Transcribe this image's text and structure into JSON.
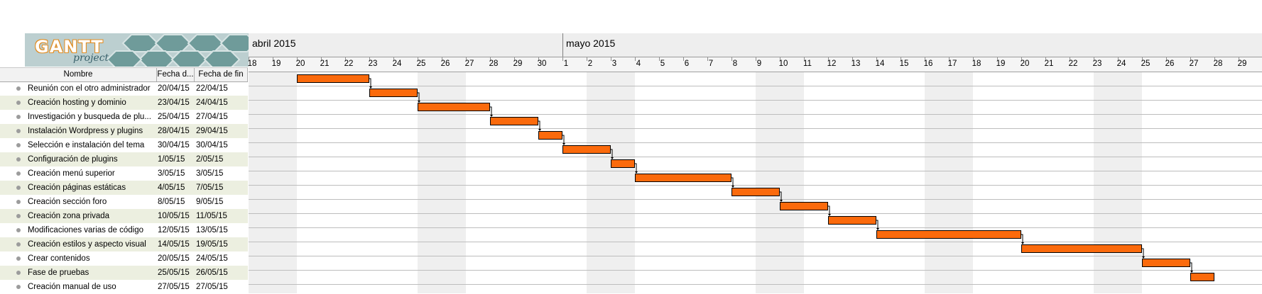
{
  "logo": {
    "word": "GANTT",
    "sub": "project"
  },
  "columns": {
    "name": "Nombre",
    "start": "Fecha d...",
    "end": "Fecha de fin"
  },
  "months": [
    {
      "label": "abril 2015",
      "start_index": 0
    },
    {
      "label": "mayo 2015",
      "start_index": 13
    }
  ],
  "days": [
    "18",
    "19",
    "20",
    "21",
    "22",
    "23",
    "24",
    "25",
    "26",
    "27",
    "28",
    "29",
    "30",
    "1",
    "2",
    "3",
    "4",
    "5",
    "6",
    "7",
    "8",
    "9",
    "10",
    "11",
    "12",
    "13",
    "14",
    "15",
    "16",
    "17",
    "18",
    "19",
    "20",
    "21",
    "22",
    "23",
    "24",
    "25",
    "26",
    "27",
    "28",
    "29"
  ],
  "weekend_day_indexes": [
    0,
    1,
    7,
    8,
    14,
    15,
    21,
    22,
    28,
    29,
    35,
    36
  ],
  "tasks": [
    {
      "name": "Reunión con el otro administrador",
      "start": "20/04/15",
      "end": "22/04/15",
      "start_day": 2,
      "end_day": 4
    },
    {
      "name": "Creación hosting y dominio",
      "start": "23/04/15",
      "end": "24/04/15",
      "start_day": 5,
      "end_day": 6
    },
    {
      "name": "Investigación y busqueda de plu...",
      "start": "25/04/15",
      "end": "27/04/15",
      "start_day": 7,
      "end_day": 9
    },
    {
      "name": "Instalación Wordpress y plugins",
      "start": "28/04/15",
      "end": "29/04/15",
      "start_day": 10,
      "end_day": 11
    },
    {
      "name": "Selección e instalación del tema",
      "start": "30/04/15",
      "end": "30/04/15",
      "start_day": 12,
      "end_day": 12
    },
    {
      "name": "Configuración de plugins",
      "start": "1/05/15",
      "end": "2/05/15",
      "start_day": 13,
      "end_day": 14
    },
    {
      "name": "Creación menú superior",
      "start": "3/05/15",
      "end": "3/05/15",
      "start_day": 15,
      "end_day": 15
    },
    {
      "name": "Creación páginas estáticas",
      "start": "4/05/15",
      "end": "7/05/15",
      "start_day": 16,
      "end_day": 19
    },
    {
      "name": "Creación sección foro",
      "start": "8/05/15",
      "end": "9/05/15",
      "start_day": 20,
      "end_day": 21
    },
    {
      "name": "Creación zona privada",
      "start": "10/05/15",
      "end": "11/05/15",
      "start_day": 22,
      "end_day": 23
    },
    {
      "name": "Modificaciones varias de código",
      "start": "12/05/15",
      "end": "13/05/15",
      "start_day": 24,
      "end_day": 25
    },
    {
      "name": "Creación estilos y aspecto visual",
      "start": "14/05/15",
      "end": "19/05/15",
      "start_day": 26,
      "end_day": 31
    },
    {
      "name": "Crear contenidos",
      "start": "20/05/15",
      "end": "24/05/15",
      "start_day": 32,
      "end_day": 36
    },
    {
      "name": "Fase de pruebas",
      "start": "25/05/15",
      "end": "26/05/15",
      "start_day": 37,
      "end_day": 38
    },
    {
      "name": "Creación manual de uso",
      "start": "27/05/15",
      "end": "27/05/15",
      "start_day": 39,
      "end_day": 39
    }
  ],
  "colors": {
    "bar": "#fb6a0c",
    "row_alt": "#ecefe0",
    "weekend": "#efefef"
  }
}
